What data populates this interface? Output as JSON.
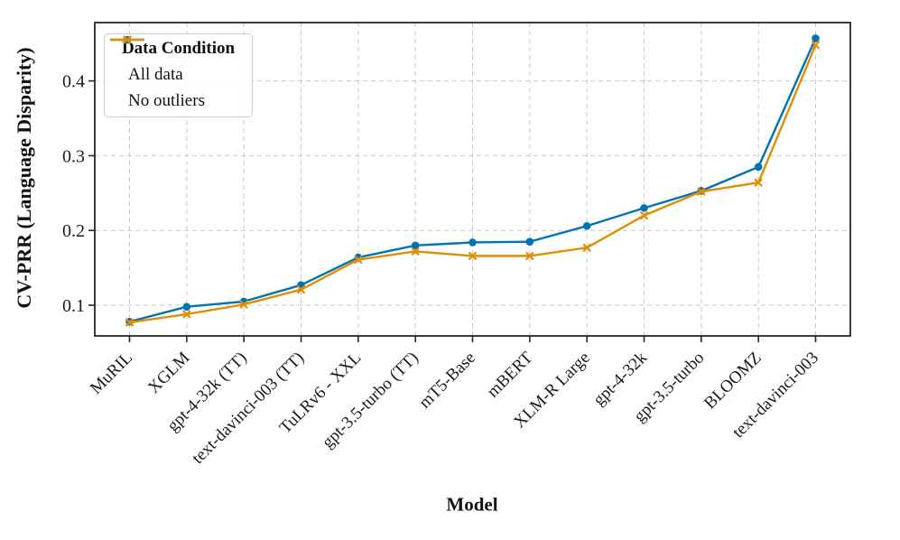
{
  "chart_data": {
    "type": "line",
    "title": "",
    "xlabel": "Model",
    "ylabel": "CV-PRR (Language Disparity)",
    "categories": [
      "MuRIL",
      "XGLM",
      "gpt-4-32k (TT)",
      "text-davinci-003 (TT)",
      "TuLRv6 - XXL",
      "gpt-3.5-turbo (TT)",
      "mT5-Base",
      "mBERT",
      "XLM-R Large",
      "gpt-4-32k",
      "gpt-3.5-turbo",
      "BLOOMZ",
      "text-davinci-003"
    ],
    "series": [
      {
        "name": "All data",
        "marker": "circle",
        "color": "#0173b2",
        "values": [
          0.078,
          0.098,
          0.105,
          0.127,
          0.164,
          0.18,
          0.184,
          0.185,
          0.206,
          0.23,
          0.253,
          0.285,
          0.457
        ]
      },
      {
        "name": "No outliers",
        "marker": "x",
        "color": "#de8f05",
        "values": [
          0.077,
          0.088,
          0.101,
          0.121,
          0.161,
          0.172,
          0.166,
          0.166,
          0.177,
          0.22,
          0.252,
          0.264,
          0.448
        ]
      }
    ],
    "yticks": [
      0.1,
      0.2,
      0.3,
      0.4
    ],
    "ylim": [
      0.059,
      0.478
    ],
    "grid": true,
    "grid_style": "dashed",
    "legend": {
      "title": "Data Condition",
      "position": "upper-left"
    },
    "colors": {
      "grid": "#c9c9c9",
      "spine": "#262626",
      "text": "#1a1a1a"
    }
  }
}
